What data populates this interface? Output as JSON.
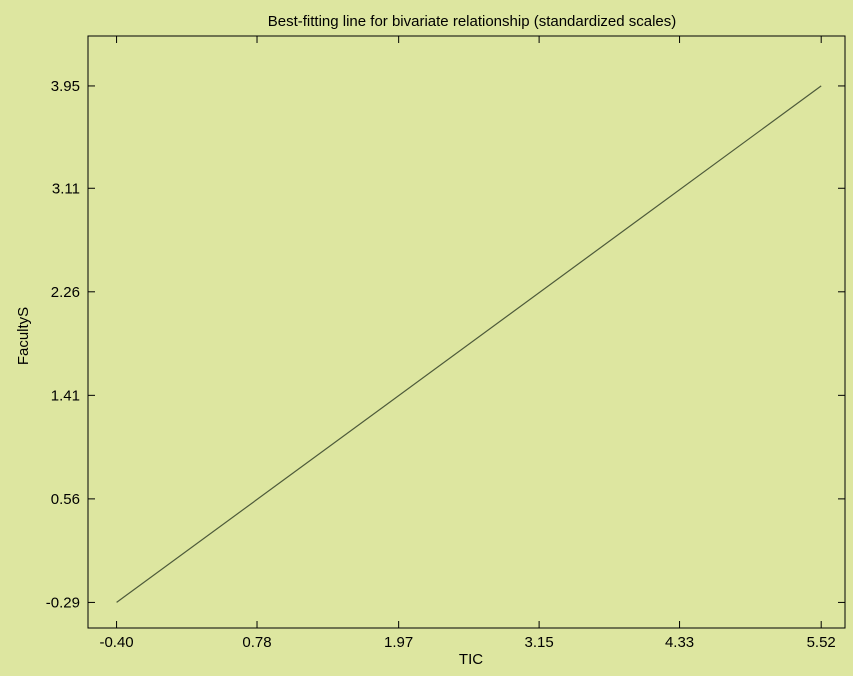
{
  "chart_data": {
    "type": "line",
    "title": "Best-fitting line for bivariate relationship (standardized scales)",
    "xlabel": "TIC",
    "ylabel": "FacultyS",
    "x_ticks": [
      "-0.40",
      "0.78",
      "1.97",
      "3.15",
      "4.33",
      "5.52"
    ],
    "y_ticks": [
      "-0.29",
      "0.56",
      "1.41",
      "2.26",
      "3.11",
      "3.95"
    ],
    "x": [
      -0.4,
      5.52
    ],
    "y": [
      -0.29,
      3.95
    ],
    "xlim": [
      -0.64,
      5.72
    ],
    "ylim": [
      -0.5,
      4.36
    ],
    "grid": false,
    "colors": {
      "background": "#dde6a0",
      "line": "#4d5a3a",
      "axes": "#000000"
    }
  }
}
